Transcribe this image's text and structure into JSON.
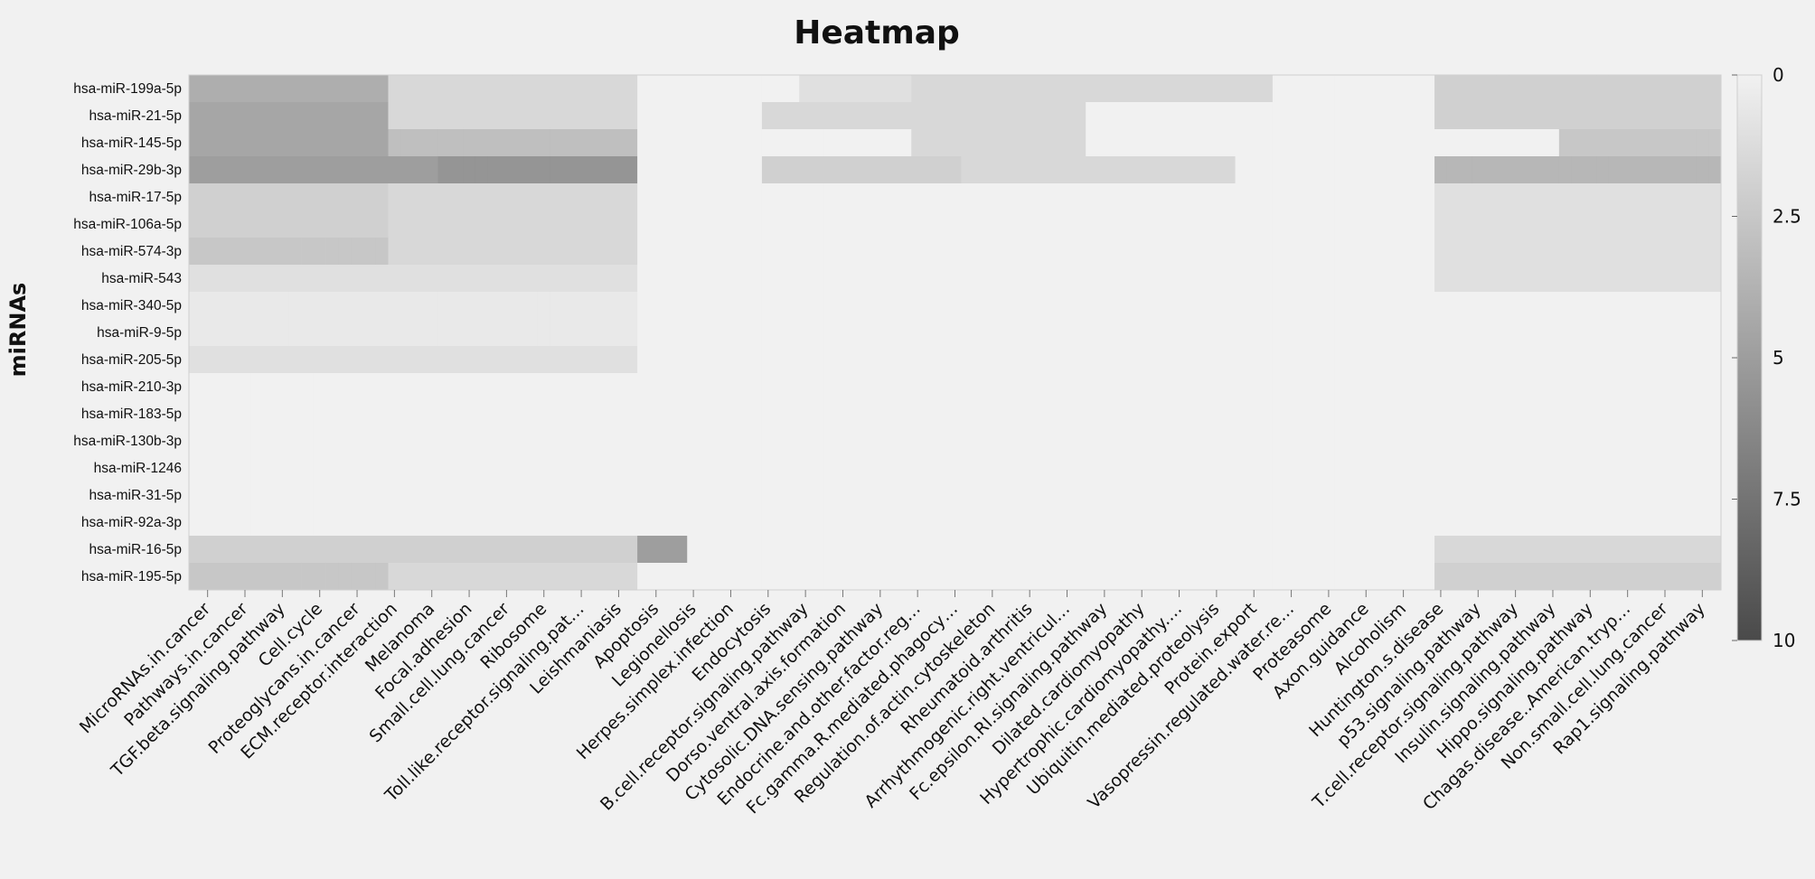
{
  "chart_data": {
    "type": "heatmap",
    "title": "Heatmap",
    "ylabel": "miRNAs",
    "xlabel": "",
    "rows": [
      "hsa-miR-199a-5p",
      "hsa-miR-21-5p",
      "hsa-miR-145-5p",
      "hsa-miR-29b-3p",
      "hsa-miR-17-5p",
      "hsa-miR-106a-5p",
      "hsa-miR-574-3p",
      "hsa-miR-543",
      "hsa-miR-340-5p",
      "hsa-miR-9-5p",
      "hsa-miR-205-5p",
      "hsa-miR-210-3p",
      "hsa-miR-183-5p",
      "hsa-miR-130b-3p",
      "hsa-miR-1246",
      "hsa-miR-31-5p",
      "hsa-miR-92a-3p",
      "hsa-miR-16-5p",
      "hsa-miR-195-5p"
    ],
    "column_labels": [
      "MicroRNAs.in.cancer",
      "Pathways.in.cancer",
      "TGF.beta.signaling.pathway",
      "Cell.cycle",
      "Proteoglycans.in.cancer",
      "ECM.receptor.interaction",
      "Melanoma",
      "Focal.adhesion",
      "Small.cell.lung.cancer",
      "Ribosome",
      "Toll.like.receptor.signaling.pat…",
      "Leishmaniasis",
      "Apoptosis",
      "Legionellosis",
      "Herpes.simplex.infection",
      "Endocytosis",
      "B.cell.receptor.signaling.pathway",
      "Dorso.ventral.axis.formation",
      "Cytosolic.DNA.sensing.pathway",
      "Endocrine.and.other.factor.reg…",
      "Fc.gamma.R.mediated.phagocy…",
      "Regulation.of.actin.cytoskeleton",
      "Rheumatoid.arthritis",
      "Arrhythmogenic.right.ventricul…",
      "Fc.epsilon.RI.signaling.pathway",
      "Dilated.cardiomyopathy",
      "Hypertrophic.cardiomyopathy.…",
      "Ubiquitin.mediated.proteolysis",
      "Protein.export",
      "Vasopressin.regulated.water.re…",
      "Proteasome",
      "Axon.guidance",
      "Alcoholism",
      "Huntington.s.disease",
      "p53.signaling.pathway",
      "T.cell.receptor.signaling.pathway",
      "Insulin.signaling.pathway",
      "Hippo.signaling.pathway",
      "Chagas.disease..American.tryp…",
      "Non.small.cell.lung.cancer",
      "Rap1.signaling.pathway"
    ],
    "cells_per_label": 3,
    "n_columns": 123,
    "value_range": [
      0,
      10
    ],
    "legend_ticks": [
      "0",
      "2.5",
      "5",
      "7.5",
      "10"
    ],
    "legend_tick_values": [
      0,
      2.5,
      5,
      7.5,
      10
    ],
    "color_low": "#f1f1f1",
    "color_high": "#4a4a4a",
    "row_dominant_segments": [
      [
        [
          0,
          16,
          4
        ],
        [
          16,
          36,
          1.5
        ],
        [
          36,
          49,
          0
        ],
        [
          49,
          58,
          1
        ],
        [
          58,
          87,
          1.5
        ],
        [
          87,
          100,
          0
        ],
        [
          100,
          123,
          2
        ]
      ],
      [
        [
          0,
          16,
          4.5
        ],
        [
          16,
          36,
          1.5
        ],
        [
          36,
          46,
          0
        ],
        [
          46,
          72,
          1.5
        ],
        [
          72,
          100,
          0
        ],
        [
          100,
          123,
          2
        ]
      ],
      [
        [
          0,
          16,
          4.5
        ],
        [
          16,
          36,
          3
        ],
        [
          36,
          58,
          0
        ],
        [
          58,
          72,
          1.5
        ],
        [
          72,
          110,
          0
        ],
        [
          110,
          123,
          2.5
        ]
      ],
      [
        [
          0,
          20,
          5
        ],
        [
          20,
          36,
          5.5
        ],
        [
          36,
          46,
          0
        ],
        [
          46,
          62,
          2
        ],
        [
          62,
          84,
          1.5
        ],
        [
          84,
          100,
          0
        ],
        [
          100,
          123,
          3.5
        ]
      ],
      [
        [
          0,
          16,
          2
        ],
        [
          16,
          36,
          1.5
        ],
        [
          36,
          100,
          0
        ],
        [
          100,
          123,
          1
        ]
      ],
      [
        [
          0,
          16,
          2
        ],
        [
          16,
          36,
          1.5
        ],
        [
          36,
          100,
          0
        ],
        [
          100,
          123,
          1
        ]
      ],
      [
        [
          0,
          16,
          2.5
        ],
        [
          16,
          36,
          1.5
        ],
        [
          36,
          100,
          0
        ],
        [
          100,
          123,
          1
        ]
      ],
      [
        [
          0,
          16,
          1
        ],
        [
          16,
          36,
          1
        ],
        [
          36,
          100,
          0
        ],
        [
          100,
          123,
          1
        ]
      ],
      [
        [
          0,
          36,
          0.5
        ],
        [
          36,
          123,
          0
        ]
      ],
      [
        [
          0,
          36,
          0.5
        ],
        [
          36,
          123,
          0
        ]
      ],
      [
        [
          0,
          36,
          1
        ],
        [
          36,
          123,
          0
        ]
      ],
      [
        [
          0,
          123,
          0
        ]
      ],
      [
        [
          0,
          123,
          0
        ]
      ],
      [
        [
          0,
          123,
          0
        ]
      ],
      [
        [
          0,
          123,
          0
        ]
      ],
      [
        [
          0,
          123,
          0
        ]
      ],
      [
        [
          0,
          123,
          0
        ]
      ],
      [
        [
          0,
          16,
          2
        ],
        [
          16,
          36,
          2
        ],
        [
          36,
          40,
          5
        ],
        [
          40,
          100,
          0
        ],
        [
          100,
          123,
          1.5
        ]
      ],
      [
        [
          0,
          16,
          2.5
        ],
        [
          16,
          36,
          1.5
        ],
        [
          36,
          100,
          0
        ],
        [
          100,
          123,
          2
        ]
      ]
    ]
  }
}
